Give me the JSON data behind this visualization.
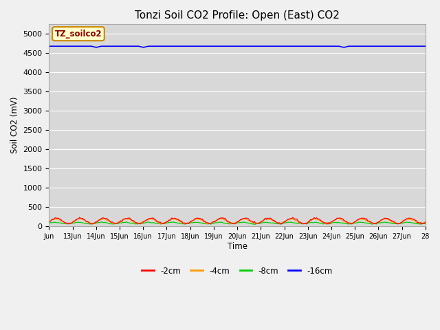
{
  "title": "Tonzi Soil CO2 Profile: Open (East) CO2",
  "ylabel": "Soil CO2 (mV)",
  "xlabel": "Time",
  "watermark": "TZ_soilco2",
  "ylim": [
    0,
    5250
  ],
  "yticks": [
    0,
    500,
    1000,
    1500,
    2000,
    2500,
    3000,
    3500,
    4000,
    4500,
    5000
  ],
  "x_labels": [
    "Jun",
    "13Jun",
    "14Jun",
    "15Jun",
    "16Jun",
    "17Jun",
    "18Jun",
    "19Jun",
    "20Jun",
    "21Jun",
    "22Jun",
    "23Jun",
    "24Jun",
    "25Jun",
    "26Jun",
    "27Jun",
    "28"
  ],
  "colors": {
    "-2cm": "#ff0000",
    "-4cm": "#ff9900",
    "-8cm": "#00cc00",
    "-16cm": "#0000ff"
  },
  "background_color": "#d8d8d8",
  "fig_background": "#f0f0f0",
  "title_fontsize": 11,
  "tick_fontsize": 7,
  "legend_labels": [
    "-2cm",
    "-4cm",
    "-8cm",
    "-16cm"
  ],
  "legend_colors": [
    "#ff0000",
    "#ff9900",
    "#00cc00",
    "#0000ff"
  ],
  "line_16cm_value": 4680,
  "line_16cm_dips": [
    48,
    96,
    300
  ],
  "line_2cm_mean": 140,
  "line_2cm_amp": 70,
  "line_4cm_mean": 130,
  "line_4cm_amp": 60,
  "line_8cm_mean": 80,
  "line_8cm_amp": 20
}
